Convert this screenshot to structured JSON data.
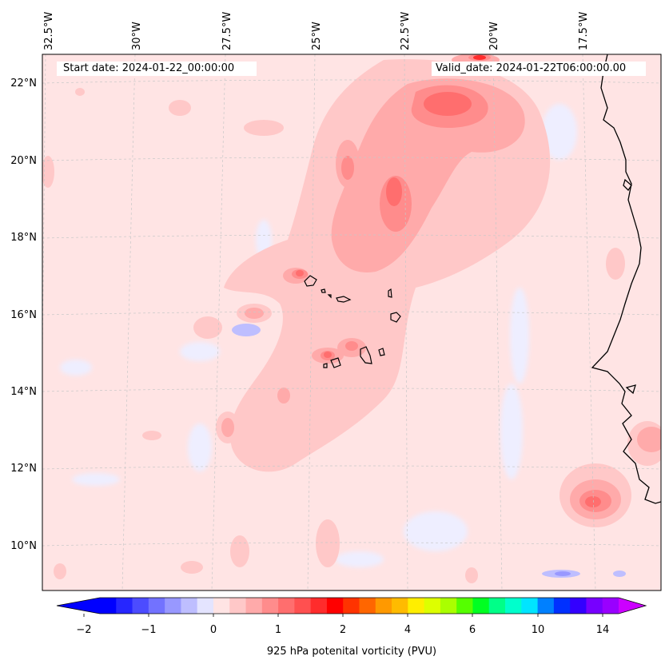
{
  "header": {
    "start_date": "Start date: 2024-01-22_00:00:00",
    "valid_date": "Valid_date: 2024-01-22T06:00:00.00"
  },
  "longitude_labels": [
    "32.5°W",
    "30°W",
    "27.5°W",
    "25°W",
    "22.5°W",
    "20°W",
    "17.5°W"
  ],
  "latitude_labels": [
    "22°N",
    "20°N",
    "18°N",
    "16°N",
    "14°N",
    "12°N",
    "10°N"
  ],
  "colorbar": {
    "title": "925 hPa potenital vorticity (PVU)",
    "tick_labels": [
      "−2",
      "−1",
      "0",
      "1",
      "2",
      "4",
      "6",
      "10",
      "14"
    ],
    "colors": [
      "#0000ff",
      "#2626ff",
      "#4c4cff",
      "#7272ff",
      "#9898ff",
      "#bebeff",
      "#e4e4ff",
      "#ffe4e4",
      "#ffc8c8",
      "#ffaaaa",
      "#ff8c8c",
      "#ff6e6e",
      "#ff5050",
      "#ff2c2c",
      "#ff0000",
      "#ff3300",
      "#ff6600",
      "#ff9900",
      "#ffbb00",
      "#ffee00",
      "#ddff00",
      "#aaff00",
      "#55ff00",
      "#00ff22",
      "#00ff88",
      "#00ffcc",
      "#00e5ff",
      "#0080ff",
      "#0030ff",
      "#3300ff",
      "#7700ff",
      "#9900ff"
    ],
    "under_color": "#0000ff",
    "over_color": "#cc00ff"
  },
  "map": {
    "ocean_base_color": "#ffe4e4",
    "coastline_color": "#000000",
    "gridline_color": "#c8c8c8",
    "islands": "Cabo Verde",
    "coast": "West Africa"
  }
}
